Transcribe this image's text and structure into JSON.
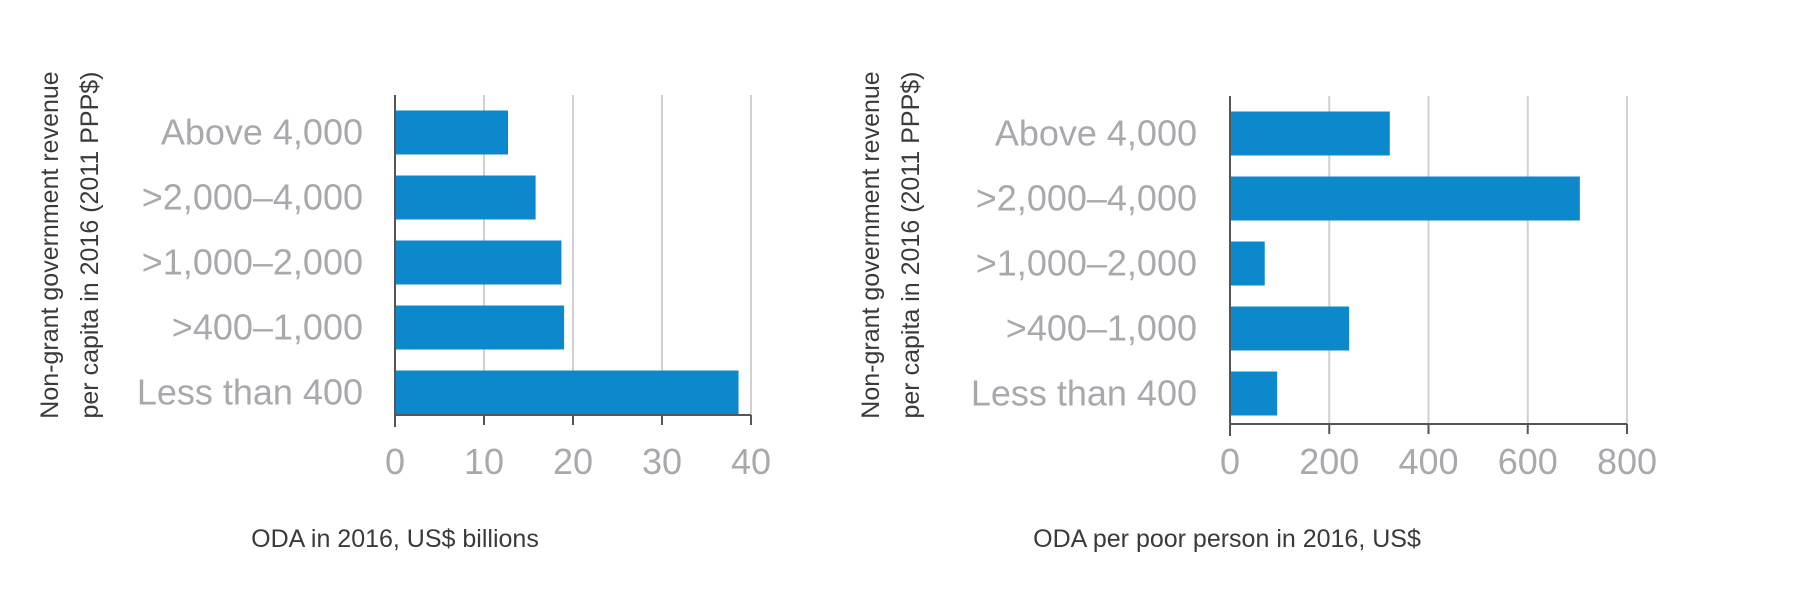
{
  "chart_data": [
    {
      "type": "bar",
      "orientation": "horizontal",
      "categories": [
        "Above 4,000",
        ">2,000–4,000",
        ">1,000–2,000",
        ">400–1,000",
        "Less than 400"
      ],
      "values": [
        12.7,
        15.8,
        18.7,
        19.0,
        38.6
      ],
      "xlabel": "ODA in 2016, US$ billions",
      "ylabel": [
        "Non-grant government revenue",
        "per capita in 2016 (2011 PPP$)"
      ],
      "xlim": [
        0,
        40
      ],
      "xticks": [
        0,
        10,
        20,
        30,
        40
      ],
      "xtick_labels": [
        "0",
        "10",
        "20",
        "30",
        "40"
      ],
      "grid": "vertical",
      "color": "#0e88cc"
    },
    {
      "type": "bar",
      "orientation": "horizontal",
      "categories": [
        "Above 4,000",
        ">2,000–4,000",
        ">1,000–2,000",
        ">400–1,000",
        "Less than 400"
      ],
      "values": [
        322,
        705,
        70,
        240,
        95
      ],
      "xlabel": "ODA per poor person in 2016, US$",
      "ylabel": [
        "Non-grant government revenue",
        "per capita in 2016 (2011 PPP$)"
      ],
      "xlim": [
        0,
        800
      ],
      "xticks": [
        0,
        200,
        400,
        600,
        800
      ],
      "xtick_labels": [
        "0",
        "200",
        "400",
        "600",
        "800"
      ],
      "grid": "vertical",
      "color": "#0e88cc"
    }
  ]
}
